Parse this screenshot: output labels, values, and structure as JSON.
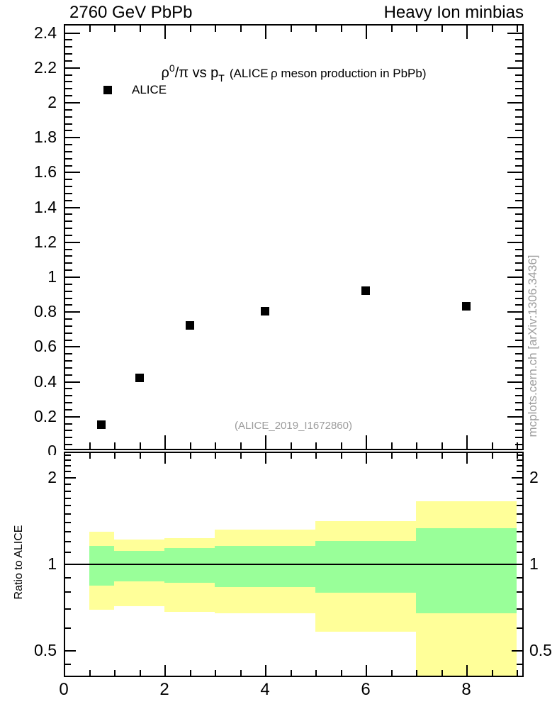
{
  "header": {
    "left": "2760 GeV PbPb",
    "right": "Heavy Ion minbias"
  },
  "top_panel": {
    "title_parts": [
      {
        "text": "ρ",
        "style": "lead"
      },
      {
        "text": "0",
        "style": "sup"
      },
      {
        "text": "/π vs p",
        "style": "lead"
      },
      {
        "text": "T",
        "style": "sub"
      },
      {
        "text": " ",
        "style": "gap"
      },
      {
        "text": "(ALICE ρ meson production in PbPb)",
        "style": "small"
      }
    ],
    "legend": {
      "label": "ALICE",
      "marker": "filled-square",
      "marker_color": "#000000"
    },
    "watermark": "(ALICE_2019_I1672860)"
  },
  "side_note": "mcplots.cern.ch [arXiv:1306.3436]",
  "ratio_panel": {
    "ylabel": "Ratio to ALICE"
  },
  "colors": {
    "marker": "#000000",
    "band_total": "#ffff99",
    "band_inner": "#99ff99",
    "gray_text": "#9c9c9c",
    "axis": "#000000"
  },
  "chart_data": [
    {
      "type": "scatter",
      "panel": "main",
      "title": "rho0/pi vs pT (ALICE rho meson production in PbPb)",
      "series": [
        {
          "name": "ALICE",
          "marker": "filled-square",
          "color": "#000000",
          "x": [
            0.75,
            1.5,
            2.5,
            4,
            6,
            8
          ],
          "y": [
            0.15,
            0.42,
            0.72,
            0.8,
            0.92,
            0.83
          ]
        }
      ],
      "xlim": [
        0,
        9.15
      ],
      "ylim": [
        0,
        2.44
      ],
      "ytick_labels": [
        "0",
        "0.2",
        "0.4",
        "0.6",
        "0.8",
        "1",
        "1.2",
        "1.4",
        "1.6",
        "1.8",
        "2",
        "2.2",
        "2.4"
      ],
      "yticks_labeled": [
        0,
        0.2,
        0.4,
        0.6,
        0.8,
        1,
        1.2,
        1.4,
        1.6,
        1.8,
        2,
        2.2,
        2.4
      ],
      "y_minor_step": 0.04,
      "x_minor_step": 0.5,
      "x_major_ticks": [
        2,
        4,
        6,
        8
      ],
      "grid": false,
      "legend_position": "top-left"
    },
    {
      "type": "area",
      "panel": "ratio",
      "ylabel": "Ratio to ALICE",
      "ylog": true,
      "xlim": [
        0,
        9.15
      ],
      "ylim": [
        0.403,
        2.455
      ],
      "bin_edges": [
        0.5,
        1,
        2,
        3,
        5,
        7,
        9
      ],
      "series": [
        {
          "name": "total-uncertainty-band",
          "color": "#ffff99",
          "low": [
            0.69,
            0.71,
            0.68,
            0.67,
            0.58,
            0.4
          ],
          "high": [
            1.29,
            1.21,
            1.23,
            1.31,
            1.41,
            1.65
          ]
        },
        {
          "name": "inner-uncertainty-band",
          "color": "#99ff99",
          "low": [
            0.84,
            0.87,
            0.86,
            0.83,
            0.79,
            0.67
          ],
          "high": [
            1.15,
            1.11,
            1.13,
            1.15,
            1.2,
            1.33
          ]
        }
      ],
      "reference_line": 1,
      "yticks_labeled": [
        0.5,
        1,
        2
      ],
      "ytick_labels": [
        "0.5",
        "1",
        "2"
      ],
      "y_minor_ticks": [
        0.45,
        0.6,
        0.7,
        0.8,
        0.9,
        1.1,
        1.2,
        1.3,
        1.4,
        1.5,
        1.6,
        1.7,
        1.8,
        1.9,
        2.1,
        2.2,
        2.3,
        2.4
      ],
      "xticks_labeled": [
        0,
        2,
        4,
        6,
        8
      ],
      "xtick_labels": [
        "0",
        "2",
        "4",
        "6",
        "8"
      ],
      "x_minor_step": 0.5
    }
  ]
}
